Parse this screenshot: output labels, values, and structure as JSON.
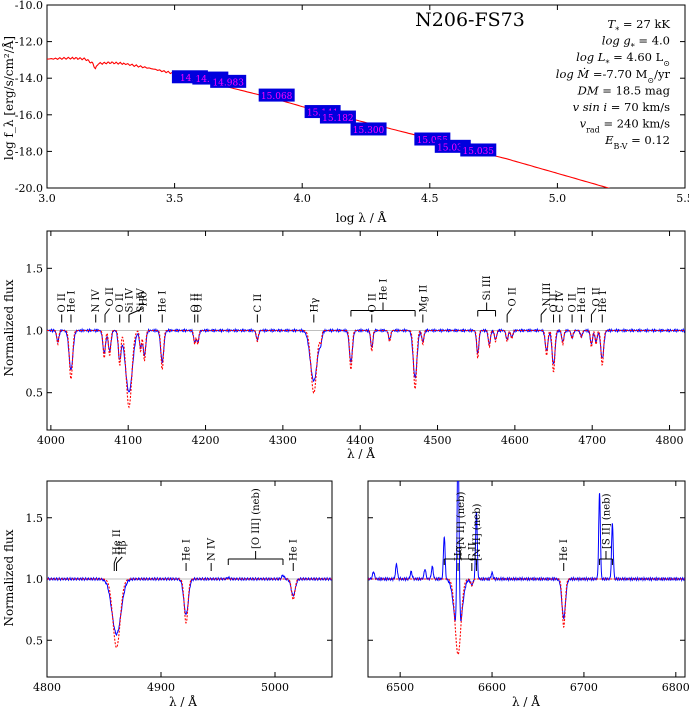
{
  "chart_data": [
    {
      "type": "line",
      "title": "N206-FS73",
      "xlabel": "log λ / Å",
      "ylabel": "log f_λ [erg/s/cm²/Å]",
      "xlim": [
        3.0,
        5.5
      ],
      "ylim": [
        -20,
        -10
      ],
      "xticks": [
        3.0,
        3.5,
        4.0,
        4.5,
        5.0,
        5.5
      ],
      "yticks": [
        -20,
        -18,
        -16,
        -14,
        -12,
        -10
      ],
      "model_sed": {
        "color": "#ff0000",
        "x": [
          3.0,
          3.1,
          3.15,
          3.18,
          3.19,
          3.2,
          3.25,
          3.3,
          3.4,
          3.5,
          3.6,
          3.7,
          3.8,
          3.9,
          4.0,
          4.1,
          4.2,
          4.3,
          4.4,
          4.5,
          4.6,
          4.7,
          4.8,
          4.9,
          5.0,
          5.1,
          5.2,
          5.3,
          5.4,
          5.5
        ],
        "y": [
          -12.95,
          -12.9,
          -12.95,
          -13.2,
          -13.5,
          -13.2,
          -13.15,
          -13.2,
          -13.45,
          -13.75,
          -14.1,
          -14.45,
          -14.8,
          -15.15,
          -15.55,
          -15.9,
          -16.25,
          -16.6,
          -16.95,
          -17.3,
          -17.65,
          -18.05,
          -18.4,
          -18.8,
          -19.2,
          -19.6,
          -20.0,
          -20.4,
          -20.8,
          -21.2
        ]
      },
      "photometry": {
        "color": "#0000dd",
        "points": [
          {
            "x": 3.56,
            "y": -13.95,
            "label": "14.9"
          },
          {
            "x": 3.64,
            "y": -14.02,
            "label": "14.9??"
          },
          {
            "x": 3.71,
            "y": -14.2,
            "label": "14.983"
          },
          {
            "x": 3.9,
            "y": -14.95,
            "label": "15.068"
          },
          {
            "x": 4.08,
            "y": -15.85,
            "label": "15.141"
          },
          {
            "x": 4.14,
            "y": -16.15,
            "label": "15.182"
          },
          {
            "x": 4.26,
            "y": -16.8,
            "label": "15.300"
          },
          {
            "x": 4.51,
            "y": -17.35,
            "label": "15.055"
          },
          {
            "x": 4.59,
            "y": -17.75,
            "label": "15.035"
          },
          {
            "x": 4.69,
            "y": -17.95,
            "label": "15.035"
          }
        ]
      },
      "parameters": [
        {
          "sym": "T",
          "sub": "*",
          "rest": " = 27 kK"
        },
        {
          "sym": "log g",
          "sub": "*",
          "rest": " =  4.0"
        },
        {
          "sym": "log L",
          "sub": "*",
          "rest": " = 4.60 L",
          "sun": "⊙"
        },
        {
          "sym": "log Ṁ",
          "sub": "",
          "rest": " =-7.70 M",
          "sun": "⊙",
          "after": "/yr"
        },
        {
          "sym": "DM",
          "sub": "",
          "rest": " = 18.5 mag"
        },
        {
          "sym": "v sin i",
          "sub": "",
          "rest": " = 70 km/s"
        },
        {
          "sym": "v",
          "sub": "rad",
          "rest": " = 240 km/s"
        },
        {
          "sym": "E",
          "sub": "B-V",
          "rest": " = 0.12"
        }
      ]
    },
    {
      "type": "line",
      "xlabel": "λ / Å",
      "ylabel": "Normalized flux",
      "xlim": [
        3995,
        4820
      ],
      "ylim": [
        0.2,
        1.8
      ],
      "xticks": [
        4000,
        4100,
        4200,
        4300,
        4400,
        4500,
        4600,
        4700,
        4800
      ],
      "yticks": [
        0.5,
        1.0,
        1.5
      ],
      "series": [
        {
          "role": "observed",
          "color": "#0000ff"
        },
        {
          "role": "model",
          "color": "#ff0000",
          "style": "dotted"
        }
      ],
      "absorption_lines": [
        {
          "x": 4026,
          "depth": 0.35,
          "w": 2.5
        },
        {
          "x": 4009,
          "depth": 0.1,
          "w": 1.5
        },
        {
          "x": 4069,
          "depth": 0.2,
          "w": 1.8
        },
        {
          "x": 4076,
          "depth": 0.18,
          "w": 1.8
        },
        {
          "x": 4089,
          "depth": 0.25,
          "w": 1.8
        },
        {
          "x": 4101,
          "depth": 0.55,
          "w": 4.5
        },
        {
          "x": 4116,
          "depth": 0.15,
          "w": 1.5
        },
        {
          "x": 4121,
          "depth": 0.22,
          "w": 1.8
        },
        {
          "x": 4144,
          "depth": 0.28,
          "w": 2.0
        },
        {
          "x": 4186,
          "depth": 0.1,
          "w": 1.5
        },
        {
          "x": 4190,
          "depth": 0.1,
          "w": 1.5
        },
        {
          "x": 4267,
          "depth": 0.08,
          "w": 1.5
        },
        {
          "x": 4340,
          "depth": 0.45,
          "w": 4.5
        },
        {
          "x": 4349,
          "depth": 0.08,
          "w": 1.5
        },
        {
          "x": 4388,
          "depth": 0.28,
          "w": 2.0
        },
        {
          "x": 4415,
          "depth": 0.15,
          "w": 1.5
        },
        {
          "x": 4438,
          "depth": 0.08,
          "w": 1.5
        },
        {
          "x": 4471,
          "depth": 0.42,
          "w": 2.5
        },
        {
          "x": 4481,
          "depth": 0.1,
          "w": 1.5
        },
        {
          "x": 4552,
          "depth": 0.2,
          "w": 1.5
        },
        {
          "x": 4567,
          "depth": 0.12,
          "w": 1.5
        },
        {
          "x": 4575,
          "depth": 0.08,
          "w": 1.5
        },
        {
          "x": 4590,
          "depth": 0.08,
          "w": 1.5
        },
        {
          "x": 4596,
          "depth": 0.06,
          "w": 1.5
        },
        {
          "x": 4641,
          "depth": 0.18,
          "w": 1.8
        },
        {
          "x": 4650,
          "depth": 0.3,
          "w": 2.0
        },
        {
          "x": 4662,
          "depth": 0.1,
          "w": 1.5
        },
        {
          "x": 4674,
          "depth": 0.06,
          "w": 1.5
        },
        {
          "x": 4686,
          "depth": 0.05,
          "w": 1.5
        },
        {
          "x": 4699,
          "depth": 0.12,
          "w": 1.5
        },
        {
          "x": 4705,
          "depth": 0.1,
          "w": 1.5
        },
        {
          "x": 4713,
          "depth": 0.25,
          "w": 2.0
        }
      ],
      "line_ids": [
        {
          "x": 4014,
          "x2": 4014,
          "label": "O II"
        },
        {
          "x": 4026,
          "x2": 4026,
          "label": "He I"
        },
        {
          "x": 4058,
          "x2": 4058,
          "label": "N IV"
        },
        {
          "x": 4070,
          "x2": 4076,
          "label": "O II"
        },
        {
          "x": 4089,
          "x2": 4089,
          "label": "O II"
        },
        {
          "x": 4101,
          "x2": 4101,
          "label": "Si IV"
        },
        {
          "x": 4101,
          "x2": 4119,
          "label": "Hδ"
        },
        {
          "x": 4116,
          "x2": 4116,
          "label": "Si IV"
        },
        {
          "x": 4144,
          "x2": 4144,
          "label": "He I"
        },
        {
          "x": 4186,
          "x2": 4186,
          "label": "O II"
        },
        {
          "x": 4190,
          "x2": 4190,
          "label": "O II"
        },
        {
          "x": 4267,
          "x2": 4267,
          "label": "C II"
        },
        {
          "x": 4340,
          "x2": 4340,
          "label": "Hγ"
        },
        {
          "x": 4388,
          "x2": 4471,
          "bracket": true,
          "label": "He I"
        },
        {
          "x": 4415,
          "x2": 4415,
          "label": "O II"
        },
        {
          "x": 4481,
          "x2": 4481,
          "label": "Mg II"
        },
        {
          "x": 4552,
          "x2": 4575,
          "bracket": true,
          "label": "Si III"
        },
        {
          "x": 4590,
          "x2": 4596,
          "label": "O II"
        },
        {
          "x": 4634,
          "x2": 4641,
          "label": "N III"
        },
        {
          "x": 4650,
          "x2": 4650,
          "label": "O II"
        },
        {
          "x": 4658,
          "x2": 4658,
          "label": "C IV"
        },
        {
          "x": 4674,
          "x2": 4674,
          "label": "O II"
        },
        {
          "x": 4686,
          "x2": 4686,
          "label": "He II"
        },
        {
          "x": 4699,
          "x2": 4705,
          "label": "O II"
        },
        {
          "x": 4713,
          "x2": 4713,
          "label": "He I"
        }
      ]
    },
    {
      "type": "line",
      "xlabel": "λ / Å",
      "ylabel": "Normalized flux",
      "xlim": [
        4800,
        5050
      ],
      "ylim": [
        0.2,
        1.8
      ],
      "xticks": [
        4800,
        4900,
        5000
      ],
      "yticks": [
        0.5,
        1.0,
        1.5
      ],
      "absorption_lines": [
        {
          "x": 4861,
          "depth": 0.5,
          "w": 4.0
        },
        {
          "x": 4922,
          "depth": 0.32,
          "w": 2.0
        },
        {
          "x": 5016,
          "depth": 0.15,
          "w": 1.8
        }
      ],
      "emission_lines": [
        {
          "x": 4959,
          "height": 0.01,
          "w": 1.0
        },
        {
          "x": 5007,
          "height": 0.03,
          "w": 1.0
        }
      ],
      "line_ids": [
        {
          "x": 4859,
          "x2": 4861,
          "label": "He II"
        },
        {
          "x": 4861,
          "x2": 4866,
          "label": "Hβ"
        },
        {
          "x": 4922,
          "x2": 4922,
          "label": "He I"
        },
        {
          "x": 4944,
          "x2": 4944,
          "label": "N IV"
        },
        {
          "x": 4959,
          "x2": 5007,
          "bracket": true,
          "label": "[O III] (neb)"
        },
        {
          "x": 5016,
          "x2": 5016,
          "label": "He I"
        }
      ]
    },
    {
      "type": "line",
      "xlabel": "λ / Å",
      "ylabel": "",
      "xlim": [
        6465,
        6810
      ],
      "ylim": [
        0.2,
        1.8
      ],
      "xticks": [
        6500,
        6600,
        6700,
        6800
      ],
      "yticks": [
        0.5,
        1.0,
        1.5
      ],
      "absorption_lines": [
        {
          "x": 6563,
          "depth": 0.55,
          "w": 4.0
        },
        {
          "x": 6578,
          "depth": 0.05,
          "w": 1.5
        },
        {
          "x": 6678,
          "depth": 0.35,
          "w": 2.0
        }
      ],
      "emission_lines": [
        {
          "x": 6548,
          "height": 0.35,
          "w": 0.9
        },
        {
          "x": 6563,
          "height": 1.6,
          "w": 1.1
        },
        {
          "x": 6583,
          "height": 0.55,
          "w": 0.9
        },
        {
          "x": 6717,
          "height": 0.7,
          "w": 0.9
        },
        {
          "x": 6731,
          "height": 0.45,
          "w": 0.9
        },
        {
          "x": 6471,
          "height": 0.06,
          "w": 1.0
        },
        {
          "x": 6496,
          "height": 0.12,
          "w": 1.0
        },
        {
          "x": 6512,
          "height": 0.06,
          "w": 1.0
        },
        {
          "x": 6527,
          "height": 0.08,
          "w": 1.0
        },
        {
          "x": 6535,
          "height": 0.1,
          "w": 1.0
        },
        {
          "x": 6600,
          "height": 0.05,
          "w": 1.0
        }
      ],
      "line_ids": [
        {
          "x": 6548,
          "x2": 6583,
          "bracket": true,
          "label": "[N II] (neb)"
        },
        {
          "x": 6563,
          "x2": 6563,
          "label": "Hα"
        },
        {
          "x": 6578,
          "x2": 6578,
          "label": "C II"
        },
        {
          "x": 6583,
          "x2": 6583,
          "label": "[N II] (neb)"
        },
        {
          "x": 6678,
          "x2": 6678,
          "label": "He I"
        },
        {
          "x": 6717,
          "x2": 6731,
          "bracket": true,
          "label": "[S II] (neb)"
        }
      ]
    }
  ]
}
